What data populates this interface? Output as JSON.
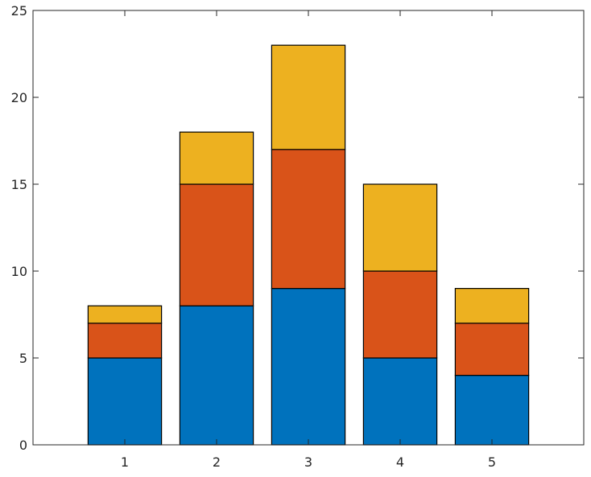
{
  "chart_data": {
    "type": "bar",
    "stacked": true,
    "categories": [
      "1",
      "2",
      "3",
      "4",
      "5"
    ],
    "x": [
      1,
      2,
      3,
      4,
      5
    ],
    "series": [
      {
        "values": [
          5,
          8,
          9,
          5,
          4
        ],
        "color": "#0072BD"
      },
      {
        "values": [
          2,
          7,
          8,
          5,
          3
        ],
        "color": "#D95319"
      },
      {
        "values": [
          1,
          3,
          6,
          5,
          2
        ],
        "color": "#EDB120"
      }
    ],
    "title": "",
    "xlabel": "",
    "ylabel": "",
    "xlim": [
      0,
      6
    ],
    "ylim": [
      0,
      25
    ],
    "yticks": [
      0,
      5,
      10,
      15,
      20,
      25
    ],
    "xticks": [
      1,
      2,
      3,
      4,
      5
    ],
    "grid": false,
    "box": true
  }
}
